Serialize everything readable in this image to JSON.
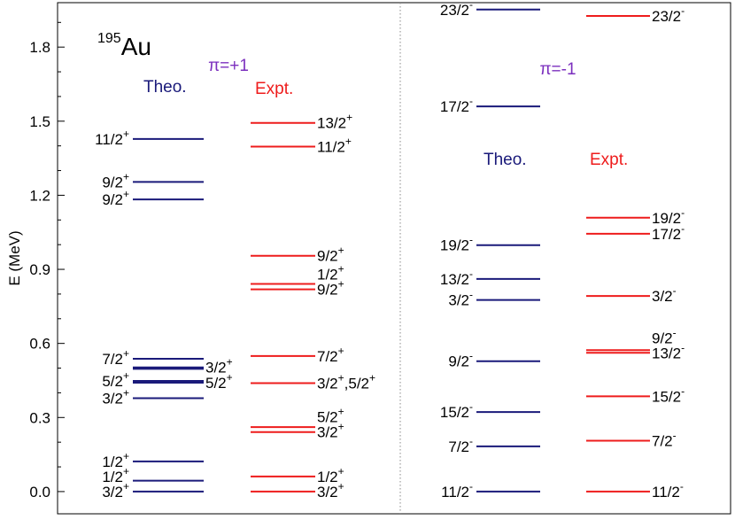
{
  "chart_data": {
    "type": "level-scheme",
    "nucleus": {
      "mass": "195",
      "symbol": "Au"
    },
    "ylabel": "E (MeV)",
    "ylim": [
      -0.09,
      1.98
    ],
    "yticks": [
      "0.0",
      "0.3",
      "0.6",
      "0.9",
      "1.2",
      "1.5",
      "1.8"
    ],
    "colors": {
      "theo": "#1a1a7a",
      "expt": "#ee1c1c",
      "parity": "#7b2fbe",
      "axis": "#000000",
      "divider": "#888888"
    },
    "panels": [
      {
        "parity": "π=+1",
        "columns": [
          {
            "label": "Theo.",
            "kind": "theo",
            "label_side": "left",
            "levels": [
              {
                "E": 0.0,
                "spin": "3/2",
                "parity": "+"
              },
              {
                "E": 0.044,
                "spin": "1/2",
                "parity": "+"
              },
              {
                "E": 0.122,
                "spin": "1/2",
                "parity": "+"
              },
              {
                "E": 0.378,
                "spin": "3/2",
                "parity": "+"
              },
              {
                "E": 0.441,
                "spin": "5/2",
                "parity": "+",
                "label_side": "right"
              },
              {
                "E": 0.448,
                "spin": "5/2",
                "parity": "+"
              },
              {
                "E": 0.497,
                "spin": "",
                "parity": ""
              },
              {
                "E": 0.503,
                "spin": "3/2",
                "parity": "+",
                "label_side": "right"
              },
              {
                "E": 0.538,
                "spin": "7/2",
                "parity": "+"
              },
              {
                "E": 1.183,
                "spin": "9/2",
                "parity": "+"
              },
              {
                "E": 1.254,
                "spin": "9/2",
                "parity": "+"
              },
              {
                "E": 1.428,
                "spin": "11/2",
                "parity": "+"
              }
            ]
          },
          {
            "label": "Expt.",
            "kind": "expt",
            "label_side": "right",
            "levels": [
              {
                "E": 0.0,
                "spin": "3/2",
                "parity": "+"
              },
              {
                "E": 0.061,
                "spin": "1/2",
                "parity": "+"
              },
              {
                "E": 0.241,
                "spin": "3/2",
                "parity": "+"
              },
              {
                "E": 0.261,
                "spin": "5/2",
                "parity": "+"
              },
              {
                "E": 0.439,
                "spin": "3/2",
                "parity": "+",
                "extra": ",5/2",
                "extra_parity": "+"
              },
              {
                "E": 0.549,
                "spin": "7/2",
                "parity": "+"
              },
              {
                "E": 0.819,
                "spin": "9/2",
                "parity": "+"
              },
              {
                "E": 0.841,
                "spin": "1/2",
                "parity": "+"
              },
              {
                "E": 0.955,
                "spin": "9/2",
                "parity": "+"
              },
              {
                "E": 1.397,
                "spin": "11/2",
                "parity": "+"
              },
              {
                "E": 1.493,
                "spin": "13/2",
                "parity": "+"
              }
            ]
          }
        ]
      },
      {
        "parity": "π=-1",
        "columns": [
          {
            "label": "Theo.",
            "kind": "theo",
            "label_side": "left",
            "levels": [
              {
                "E": 0.0,
                "spin": "11/2",
                "parity": "-"
              },
              {
                "E": 0.183,
                "spin": "7/2",
                "parity": "-"
              },
              {
                "E": 0.322,
                "spin": "15/2",
                "parity": "-"
              },
              {
                "E": 0.528,
                "spin": "9/2",
                "parity": "-"
              },
              {
                "E": 0.776,
                "spin": "3/2",
                "parity": "-"
              },
              {
                "E": 0.861,
                "spin": "13/2",
                "parity": "-"
              },
              {
                "E": 0.998,
                "spin": "19/2",
                "parity": "-"
              },
              {
                "E": 1.56,
                "spin": "17/2",
                "parity": "-"
              },
              {
                "E": 1.952,
                "spin": "23/2",
                "parity": "-"
              }
            ]
          },
          {
            "label": "Expt.",
            "kind": "expt",
            "label_side": "right",
            "levels": [
              {
                "E": 0.0,
                "spin": "11/2",
                "parity": "-"
              },
              {
                "E": 0.206,
                "spin": "7/2",
                "parity": "-"
              },
              {
                "E": 0.386,
                "spin": "15/2",
                "parity": "-"
              },
              {
                "E": 0.562,
                "spin": "13/2",
                "parity": "-"
              },
              {
                "E": 0.573,
                "spin": "9/2",
                "parity": "-"
              },
              {
                "E": 0.792,
                "spin": "3/2",
                "parity": "-"
              },
              {
                "E": 1.044,
                "spin": "17/2",
                "parity": "-"
              },
              {
                "E": 1.109,
                "spin": "19/2",
                "parity": "-"
              },
              {
                "E": 1.926,
                "spin": "23/2",
                "parity": "-"
              }
            ]
          }
        ]
      }
    ]
  }
}
